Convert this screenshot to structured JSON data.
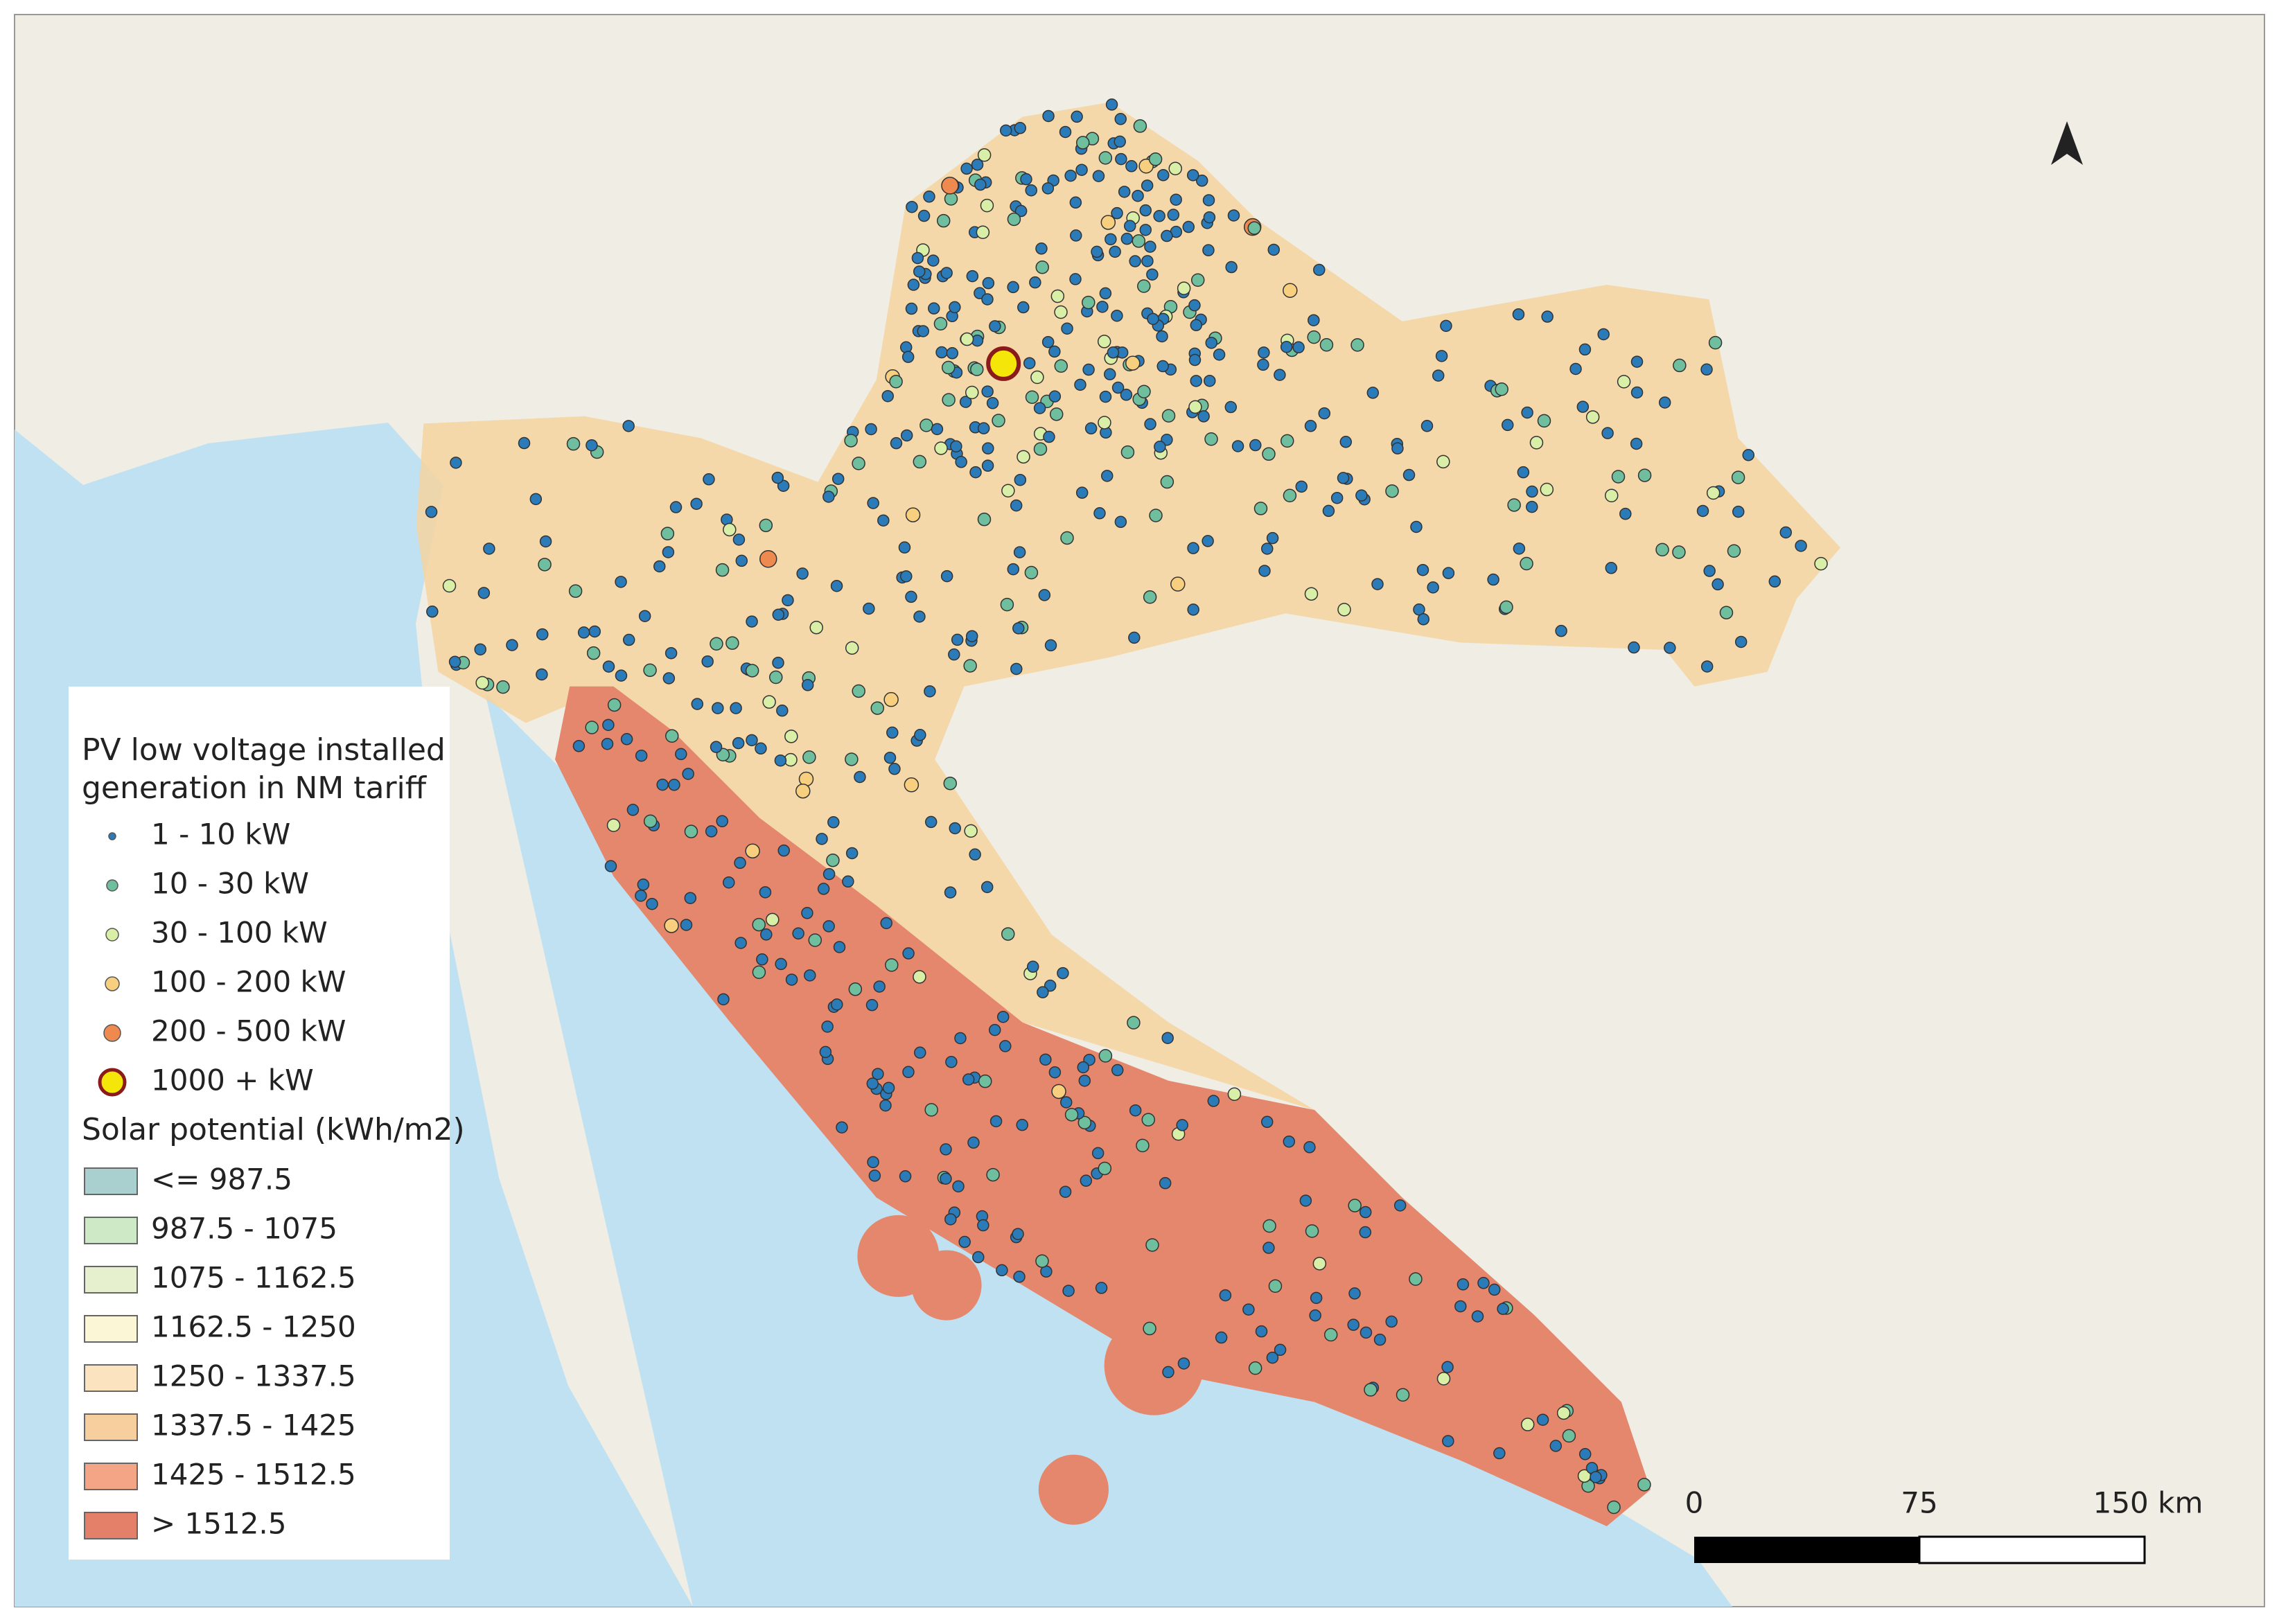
{
  "legend": {
    "pv_title": [
      "PV low voltage installed",
      "generation in NM tariff"
    ],
    "pv_items": [
      {
        "label": "1 - 10  kW",
        "color": "#2b7bb9"
      },
      {
        "label": "10 - 30 kW",
        "color": "#6fbf9e"
      },
      {
        "label": "30 - 100 kW",
        "color": "#d9eea6"
      },
      {
        "label": "100 - 200 kW",
        "color": "#f7cf7e"
      },
      {
        "label": "200 - 500 kW",
        "color": "#ee8a4f"
      },
      {
        "label": "1000 + kW",
        "color": "#f5e60a"
      }
    ],
    "solar_title": "Solar potential (kWh/m2)",
    "solar_items": [
      {
        "label": "<= 987.5",
        "color": "#a9cfcf"
      },
      {
        "label": "987.5 - 1075",
        "color": "#cde9c6"
      },
      {
        "label": "1075 - 1162.5",
        "color": "#e6f0cf"
      },
      {
        "label": "1162.5 - 1250",
        "color": "#fbf6d6"
      },
      {
        "label": "1250 - 1337.5",
        "color": "#fbe3c0"
      },
      {
        "label": "1337.5 - 1425",
        "color": "#f7cf9e"
      },
      {
        "label": "1425 - 1512.5",
        "color": "#f3a585"
      },
      {
        "label": "> 1512.5",
        "color": "#e4806a"
      }
    ]
  },
  "scale_bar": {
    "labels": [
      "0",
      "75",
      "150 km"
    ]
  }
}
